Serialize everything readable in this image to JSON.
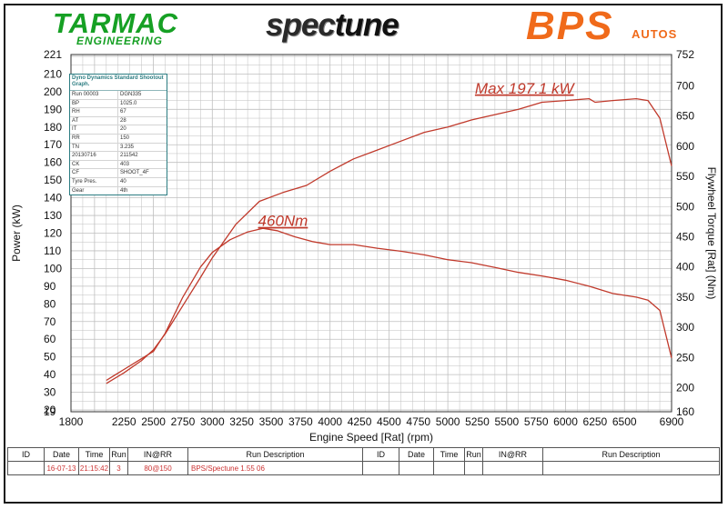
{
  "logos": {
    "tarmac": "TARMAC",
    "tarmac_sub": "ENGINEERING",
    "spectune_a": "spec",
    "spectune_b": "tune",
    "bps": "BPS",
    "bps_sub": "AUTOS"
  },
  "info_box": {
    "title": "Dyno Dynamics Standard Shootout Graph.",
    "rows": [
      {
        "k": "Run 00003",
        "v": "DGN335"
      },
      {
        "k": "BP",
        "v": "1025.0"
      },
      {
        "k": "RH",
        "v": "67"
      },
      {
        "k": "AT",
        "v": "28"
      },
      {
        "k": "IT",
        "v": "20"
      },
      {
        "k": "RR",
        "v": "150"
      },
      {
        "k": "TN",
        "v": "3.235"
      },
      {
        "k": "20130716",
        "v": "211542"
      },
      {
        "k": "CK",
        "v": "403"
      },
      {
        "k": "CF",
        "v": "SHOOT_4F"
      },
      {
        "k": "Tyre Pres.",
        "v": "40"
      },
      {
        "k": "Gear",
        "v": "4th"
      }
    ]
  },
  "run_table": {
    "headers": [
      "ID",
      "Date",
      "Time",
      "Run",
      "IN@RR",
      "Run Description",
      "ID",
      "Date",
      "Time",
      "Run",
      "IN@RR",
      "Run Description"
    ],
    "row": [
      "",
      "16-07-13",
      "21:15:42",
      "3",
      "80@150",
      "BPS/Spectune  1.55  06",
      "",
      "",
      "",
      "",
      "",
      ""
    ]
  },
  "colors": {
    "curve": "#c0392b",
    "annotation": "#c0392b",
    "grid": "#bfbfbf",
    "tarmac_green": "#16a024",
    "bps_orange": "#f06a1a"
  },
  "chart_data": {
    "type": "line",
    "xlabel": "Engine Speed [Rat] (rpm)",
    "ylabel": "Power (kW)",
    "y2label": "Flywheel Torque [Rat] (Nm)",
    "xlim": [
      1800,
      6900
    ],
    "ylim": [
      19,
      221
    ],
    "y2lim": [
      160,
      752
    ],
    "x_ticks": [
      1800,
      2250,
      2500,
      2750,
      3000,
      3250,
      3500,
      3750,
      4000,
      4250,
      4500,
      4750,
      5000,
      5250,
      5500,
      5750,
      6000,
      6250,
      6500,
      6900
    ],
    "y_ticks": [
      19,
      20,
      30,
      40,
      50,
      60,
      70,
      80,
      90,
      100,
      110,
      120,
      130,
      140,
      150,
      160,
      170,
      180,
      190,
      200,
      210,
      221
    ],
    "y2_ticks": [
      160,
      200,
      250,
      300,
      350,
      400,
      450,
      500,
      550,
      600,
      650,
      700,
      752
    ],
    "grid": true,
    "annotations": [
      {
        "text": "Max 197.1 kW",
        "x": 5650,
        "y": 199
      },
      {
        "text": "460Nm",
        "x": 3600,
        "y": 124
      }
    ],
    "series": [
      {
        "axis": "left",
        "x": [
          2100,
          2250,
          2400,
          2500,
          2600,
          2750,
          2900,
          3000,
          3200,
          3400,
          3600,
          3800,
          4000,
          4200,
          4400,
          4600,
          4800,
          5000,
          5200,
          5400,
          5600,
          5800,
          6000,
          6200,
          6250,
          6400,
          6600,
          6700,
          6800,
          6900
        ],
        "values": [
          35,
          41,
          48,
          54,
          63,
          79,
          95,
          106,
          125,
          138,
          143,
          147,
          155,
          162,
          167,
          172,
          177,
          180,
          184,
          187,
          190,
          194,
          195,
          196,
          194,
          195,
          196,
          195,
          185,
          158
        ]
      },
      {
        "axis": "right",
        "x": [
          2100,
          2250,
          2400,
          2500,
          2600,
          2750,
          2900,
          3000,
          3150,
          3300,
          3430,
          3550,
          3700,
          3850,
          4000,
          4200,
          4400,
          4600,
          4800,
          5000,
          5200,
          5400,
          5600,
          5800,
          6000,
          6200,
          6400,
          6600,
          6700,
          6800,
          6900
        ],
        "values": [
          212,
          230,
          248,
          260,
          290,
          350,
          400,
          424,
          445,
          458,
          464,
          460,
          450,
          442,
          437,
          437,
          431,
          426,
          420,
          412,
          407,
          399,
          391,
          385,
          378,
          368,
          356,
          350,
          345,
          328,
          249
        ]
      }
    ]
  }
}
